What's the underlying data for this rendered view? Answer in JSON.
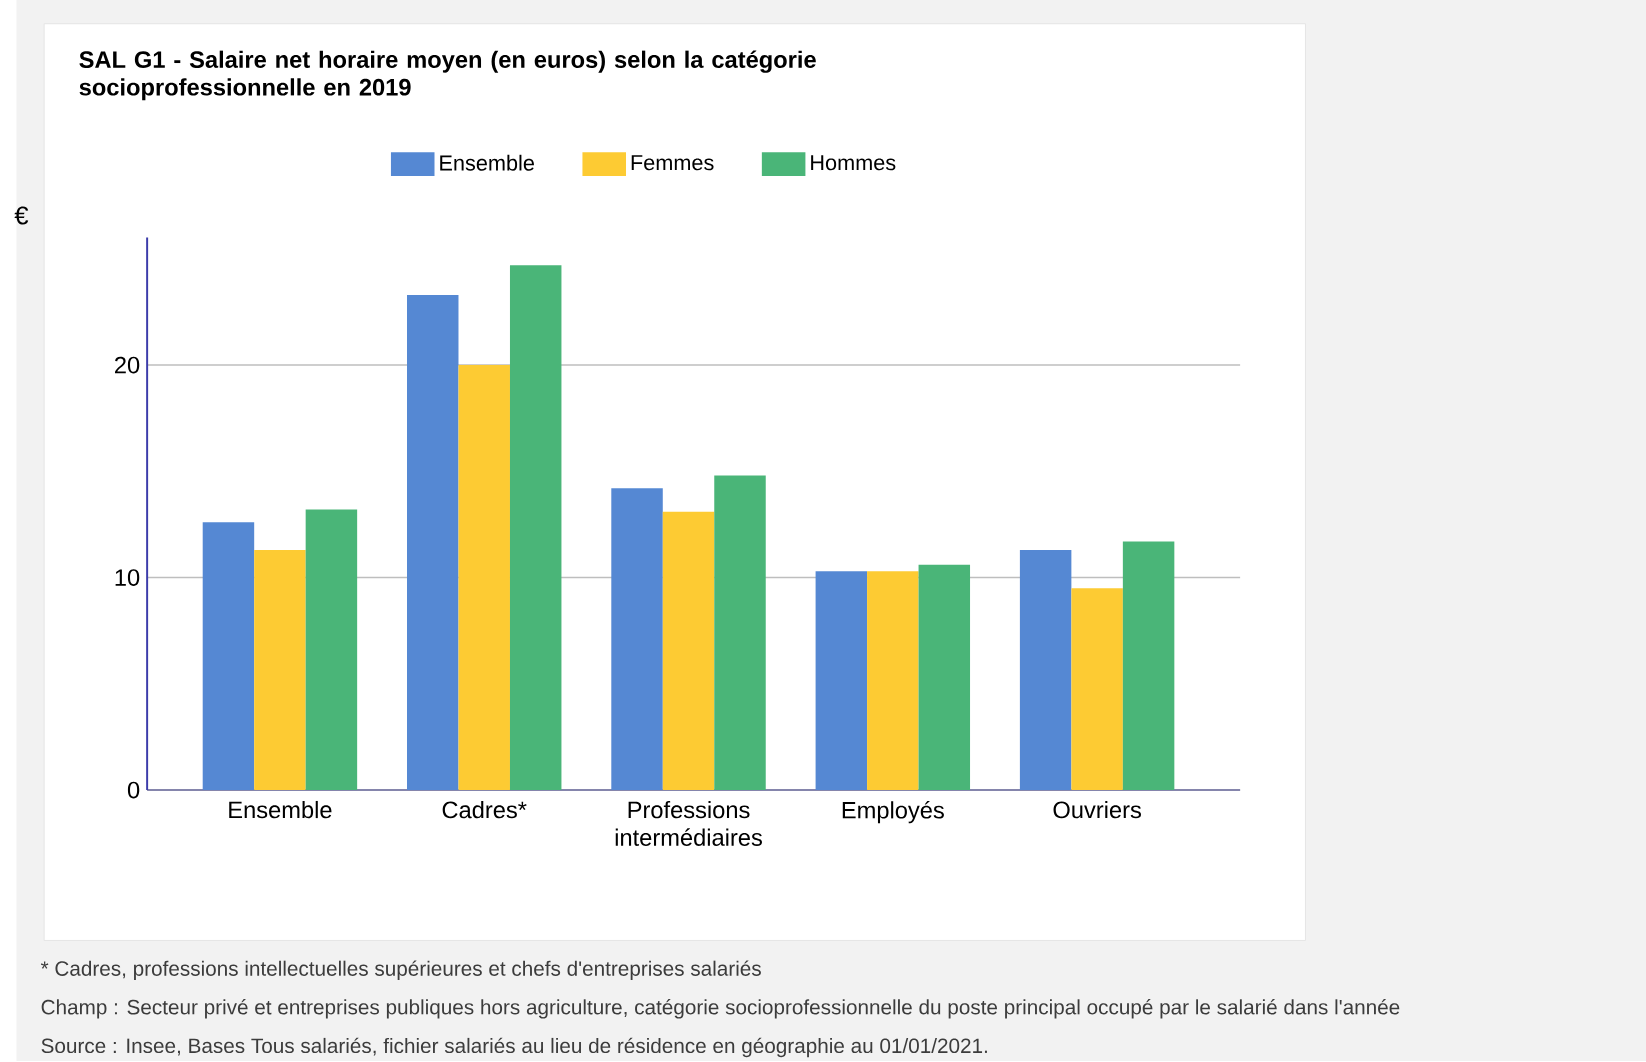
{
  "chart_data": {
    "type": "bar",
    "title": "SAL G1 - Salaire net horaire moyen (en euros) selon la catégorie socioprofessionnelle en 2019",
    "ylabel": "€",
    "categories": [
      "Ensemble",
      "Cadres*",
      "Professions intermédiaires",
      "Employés",
      "Ouvriers"
    ],
    "series": [
      {
        "name": "Ensemble",
        "color": "#5588d3",
        "values": [
          12.6,
          23.3,
          14.2,
          10.3,
          11.3
        ]
      },
      {
        "name": "Femmes",
        "color": "#fdcb33",
        "values": [
          11.3,
          20.0,
          13.1,
          10.3,
          9.5
        ]
      },
      {
        "name": "Hommes",
        "color": "#4ab578",
        "values": [
          13.2,
          24.7,
          14.8,
          10.6,
          11.7
        ]
      }
    ],
    "ylim": [
      0,
      26
    ],
    "yticks": [
      0,
      10,
      20
    ],
    "grid": "y",
    "legend": "top",
    "annotations": [
      "* Cadres, professions intellectuelles supérieures et chefs d'entreprises salariés",
      "Champ : Secteur privé et entreprises publiques hors agriculture, catégorie socioprofessionnelle du poste principal occupé par le salarié dans l'année",
      "Source : Insee, Bases Tous salariés, fichier salariés au lieu de résidence en géographie au 01/01/2021."
    ]
  }
}
